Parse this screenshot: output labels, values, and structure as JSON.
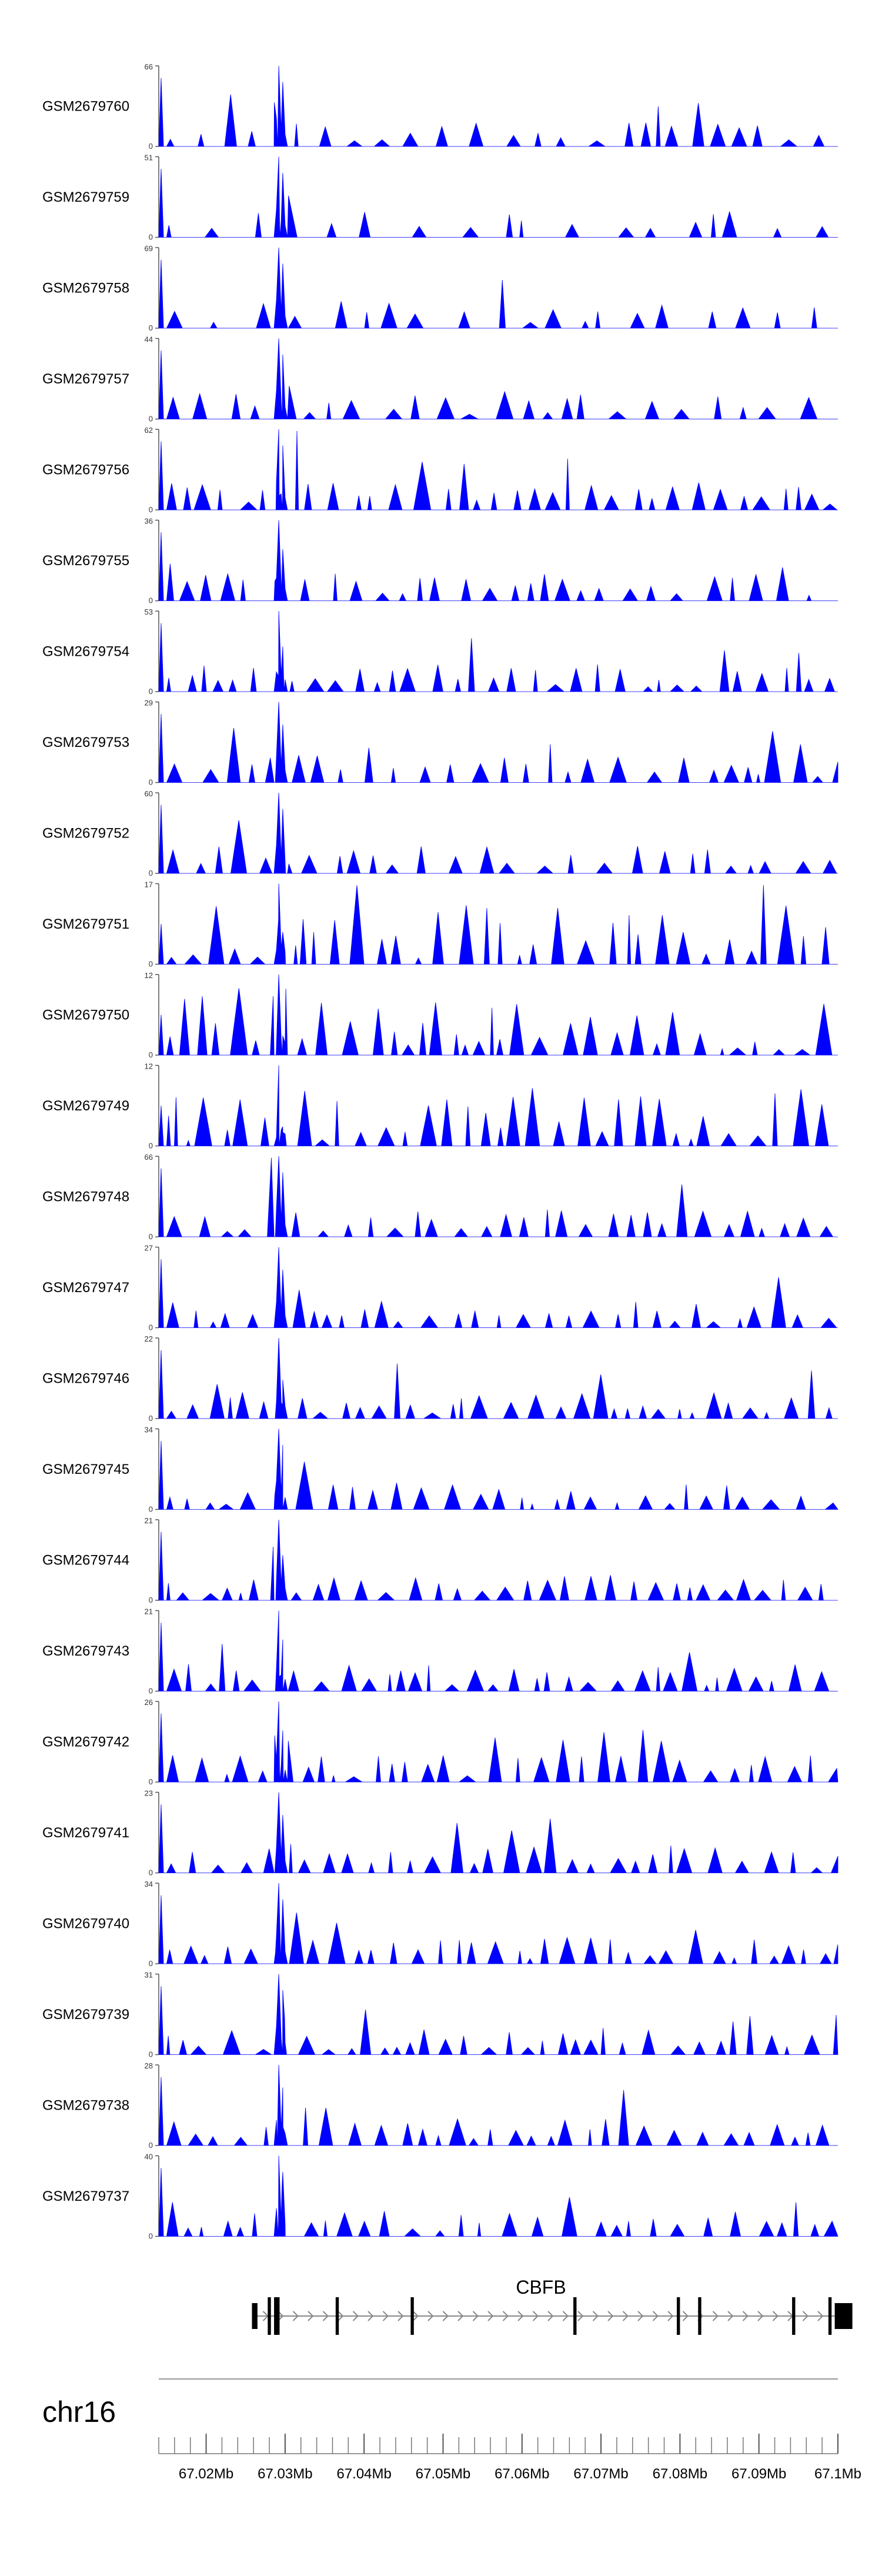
{
  "chart_data": {
    "type": "area",
    "title": "",
    "chromosome": "chr16",
    "colors": {
      "track": "#0000ff",
      "axis": "#555555",
      "gene": "#000000",
      "intron_arrow": "#888888"
    },
    "x_range_mb": [
      67.014,
      67.1
    ],
    "x_ticks": [
      "67.02Mb",
      "67.03Mb",
      "67.04Mb",
      "67.05Mb",
      "67.06Mb",
      "67.07Mb",
      "67.08Mb",
      "67.09Mb",
      "67.1Mb"
    ],
    "x_tick_values_mb": [
      67.02,
      67.03,
      67.04,
      67.05,
      67.06,
      67.07,
      67.08,
      67.09,
      67.1
    ],
    "gene": {
      "name": "CBFB",
      "start_mb": 67.0258,
      "end_mb": 67.1,
      "exons_mb": [
        [
          67.0258,
          67.0265
        ],
        [
          67.0278,
          67.0282
        ],
        [
          67.0286,
          67.0293
        ],
        [
          67.0364,
          67.0368
        ],
        [
          67.0459,
          67.0463
        ],
        [
          67.0665,
          67.0669
        ],
        [
          67.0796,
          67.08
        ],
        [
          67.0823,
          67.0827
        ],
        [
          67.0942,
          67.0946
        ],
        [
          67.0988,
          67.0992
        ],
        [
          67.0996,
          67.1
        ]
      ]
    },
    "series": [
      {
        "name": "GSM2679760",
        "ymax": 66,
        "seed": 11,
        "density": 1,
        "peak": 1
      },
      {
        "name": "GSM2679759",
        "ymax": 51,
        "seed": 12,
        "density": 0.6,
        "peak": 1
      },
      {
        "name": "GSM2679758",
        "ymax": 69,
        "seed": 13,
        "density": 0.6,
        "peak": 1
      },
      {
        "name": "GSM2679757",
        "ymax": 44,
        "seed": 14,
        "density": 1,
        "peak": 1
      },
      {
        "name": "GSM2679756",
        "ymax": 62,
        "seed": 15,
        "density": 1.4,
        "peak": 1
      },
      {
        "name": "GSM2679755",
        "ymax": 36,
        "seed": 16,
        "density": 1,
        "peak": 0.8
      },
      {
        "name": "GSM2679754",
        "ymax": 53,
        "seed": 17,
        "density": 1.4,
        "peak": 0.7
      },
      {
        "name": "GSM2679753",
        "ymax": 29,
        "seed": 18,
        "density": 1,
        "peak": 0.9
      },
      {
        "name": "GSM2679752",
        "ymax": 60,
        "seed": 19,
        "density": 1,
        "peak": 1
      },
      {
        "name": "GSM2679751",
        "ymax": 17,
        "seed": 20,
        "density": 1.6,
        "peak": 0.5
      },
      {
        "name": "GSM2679750",
        "ymax": 12,
        "seed": 21,
        "density": 1.6,
        "peak": 0.3
      },
      {
        "name": "GSM2679749",
        "ymax": 12,
        "seed": 22,
        "density": 1.6,
        "peak": 0.3
      },
      {
        "name": "GSM2679748",
        "ymax": 66,
        "seed": 23,
        "density": 1.4,
        "peak": 1
      },
      {
        "name": "GSM2679747",
        "ymax": 27,
        "seed": 24,
        "density": 1.4,
        "peak": 0.9
      },
      {
        "name": "GSM2679746",
        "ymax": 22,
        "seed": 25,
        "density": 1.6,
        "peak": 0.6
      },
      {
        "name": "GSM2679745",
        "ymax": 34,
        "seed": 26,
        "density": 1.2,
        "peak": 1
      },
      {
        "name": "GSM2679744",
        "ymax": 21,
        "seed": 27,
        "density": 1.6,
        "peak": 0.7
      },
      {
        "name": "GSM2679743",
        "ymax": 21,
        "seed": 28,
        "density": 1.6,
        "peak": 0.8
      },
      {
        "name": "GSM2679742",
        "ymax": 26,
        "seed": 29,
        "density": 1.5,
        "peak": 0.8
      },
      {
        "name": "GSM2679741",
        "ymax": 23,
        "seed": 30,
        "density": 1.6,
        "peak": 0.9
      },
      {
        "name": "GSM2679740",
        "ymax": 34,
        "seed": 31,
        "density": 1.6,
        "peak": 1
      },
      {
        "name": "GSM2679739",
        "ymax": 31,
        "seed": 32,
        "density": 1.5,
        "peak": 1
      },
      {
        "name": "GSM2679738",
        "ymax": 28,
        "seed": 33,
        "density": 1.5,
        "peak": 0.9
      },
      {
        "name": "GSM2679737",
        "ymax": 40,
        "seed": 34,
        "density": 1.2,
        "peak": 1
      }
    ]
  }
}
